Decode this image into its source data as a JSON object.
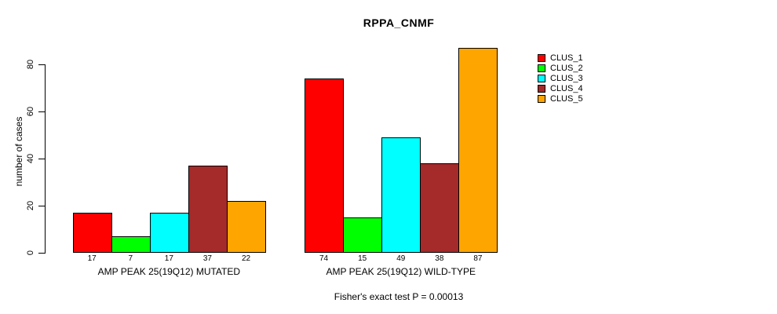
{
  "header": {
    "title": "RPPA_CNMF"
  },
  "footer": {
    "annotation": "Fisher's exact test P = 0.00013"
  },
  "chart_data": {
    "type": "bar",
    "title": "RPPA_CNMF",
    "xlabel": "",
    "ylabel": "number of cases",
    "ylim": [
      0,
      87
    ],
    "yticks": [
      0,
      20,
      40,
      60,
      80
    ],
    "grid": false,
    "legend_position": "right",
    "bar_value_labels_shown": true,
    "categories": [
      "AMP PEAK 25(19Q12) MUTATED",
      "AMP PEAK 25(19Q12) WILD-TYPE"
    ],
    "series": [
      {
        "name": "CLUS_1",
        "color": "#FF0000",
        "values": [
          17,
          74
        ]
      },
      {
        "name": "CLUS_2",
        "color": "#00FF00",
        "values": [
          7,
          15
        ]
      },
      {
        "name": "CLUS_3",
        "color": "#00FFFF",
        "values": [
          17,
          49
        ]
      },
      {
        "name": "CLUS_4",
        "color": "#A52A2A",
        "values": [
          37,
          38
        ]
      },
      {
        "name": "CLUS_5",
        "color": "#FFA500",
        "values": [
          22,
          87
        ]
      }
    ],
    "annotation": "Fisher's exact test P = 0.00013"
  }
}
